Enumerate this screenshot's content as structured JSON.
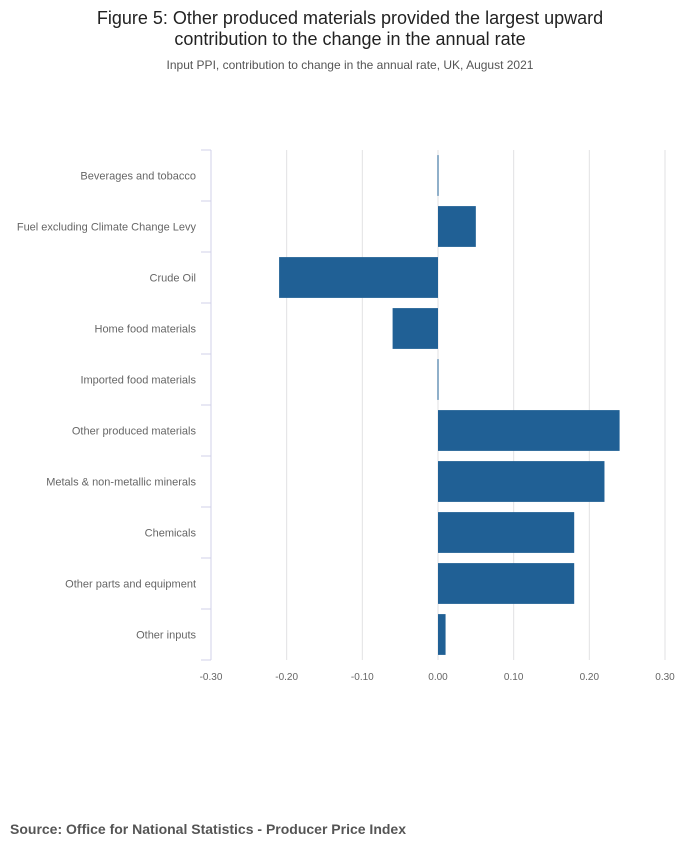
{
  "title": "Figure 5: Other produced materials provided the largest upward contribution to the change in the annual rate",
  "title_line1": "Figure 5: Other produced materials provided the largest upward",
  "title_line2": "contribution to the change in the annual rate",
  "subtitle": "Input PPI, contribution to change in the annual rate, UK, August 2021",
  "source": "Source: Office for National Statistics - Producer Price Index",
  "colors": {
    "bar": "#206095",
    "grid": "#e2e2e3",
    "axis": "#d0d0e8",
    "label": "#666666"
  },
  "chart_data": {
    "type": "bar",
    "orientation": "horizontal",
    "categories": [
      "Beverages and tobacco",
      "Fuel excluding Climate Change Levy",
      "Crude Oil",
      "Home food materials",
      "Imported food materials",
      "Other produced materials",
      "Metals & non-metallic minerals",
      "Chemicals",
      "Other parts and equipment",
      "Other inputs"
    ],
    "values": [
      0.0,
      0.05,
      -0.21,
      -0.06,
      0.0,
      0.24,
      0.22,
      0.18,
      0.18,
      0.01
    ],
    "xlim": [
      -0.3,
      0.3
    ],
    "xticks": [
      -0.3,
      -0.2,
      -0.1,
      0.0,
      0.1,
      0.2,
      0.3
    ],
    "xtick_labels": [
      "-0.30",
      "-0.20",
      "-0.10",
      "0.00",
      "0.10",
      "0.20",
      "0.30"
    ],
    "grid": true,
    "legend": "none"
  }
}
